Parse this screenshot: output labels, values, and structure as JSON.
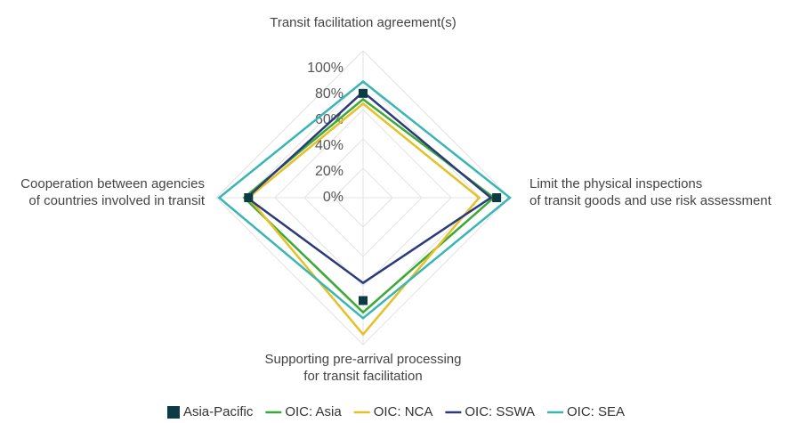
{
  "chart_data": {
    "type": "radar",
    "categories": [
      [
        "Transit facilitation agreement(s)"
      ],
      [
        "Limit the physical inspections",
        "of transit goods and use risk assessment"
      ],
      [
        "Supporting pre-arrival processing",
        "for transit facilitation"
      ],
      [
        "Cooperation between agencies",
        "of countries involved in transit"
      ]
    ],
    "ylim": [
      0,
      100
    ],
    "yticks": [
      {
        "value": 0,
        "label": "0%"
      },
      {
        "value": 20,
        "label": "20%"
      },
      {
        "value": 40,
        "label": "40%"
      },
      {
        "value": 60,
        "label": "60%"
      },
      {
        "value": 80,
        "label": "80%"
      },
      {
        "value": 100,
        "label": "100%"
      }
    ],
    "grid": true,
    "legend": "bottom",
    "series": [
      {
        "name": "Asia-Pacific",
        "color": "#0d3b45",
        "style": "marker",
        "values": [
          71,
          91,
          70,
          78
        ]
      },
      {
        "name": "OIC: Asia",
        "color": "#3aaa35",
        "style": "line",
        "values": [
          67,
          89,
          78,
          81
        ]
      },
      {
        "name": "OIC: NCA",
        "color": "#e6c027",
        "style": "line",
        "values": [
          64,
          79,
          93,
          78
        ]
      },
      {
        "name": "OIC: SSWA",
        "color": "#2b3a7a",
        "style": "line",
        "values": [
          72,
          87,
          58,
          79
        ]
      },
      {
        "name": "OIC: SEA",
        "color": "#3ab5b5",
        "style": "line",
        "values": [
          79,
          100,
          82,
          98
        ]
      }
    ]
  }
}
